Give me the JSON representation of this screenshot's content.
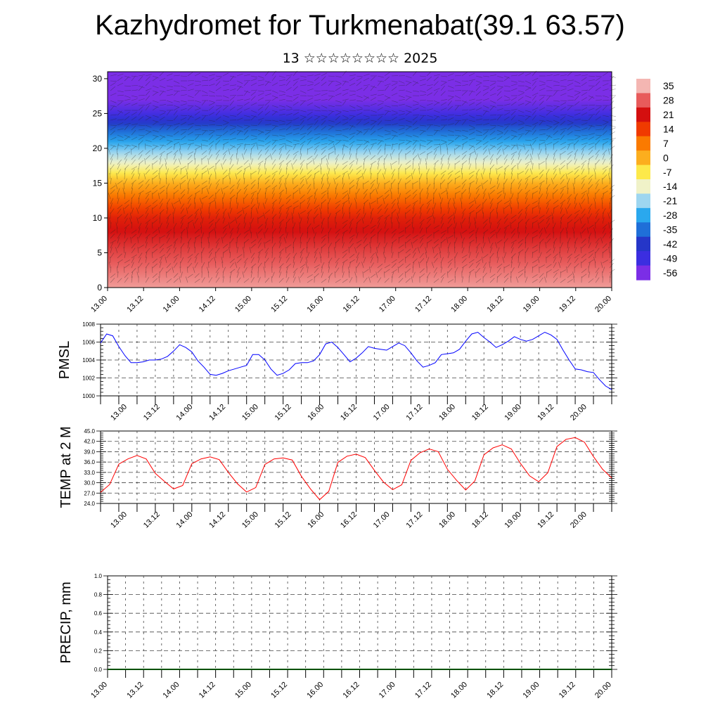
{
  "title": "Kazhydromet for Turkmenabat(39.1 63.57)",
  "subtitle": "13 ☆☆☆☆☆☆☆☆ 2025",
  "time_labels": [
    "13.00",
    "13.12",
    "14.00",
    "14.12",
    "15.00",
    "15.12",
    "16.00",
    "16.12",
    "17.00",
    "17.12",
    "18.00",
    "18.12",
    "19.00",
    "19.12",
    "20.00"
  ],
  "chart_data": [
    {
      "type": "heatmap",
      "name": "cross-section",
      "description_axes": "time vs height level",
      "y_ticks": [
        0,
        5,
        10,
        15,
        20,
        25,
        30
      ],
      "ylim": [
        0,
        31
      ],
      "colorbar_labels": [
        "35",
        "28",
        "21",
        "14",
        "7",
        "0",
        "-7",
        "-14",
        "-21",
        "-28",
        "-35",
        "-42",
        "-49",
        "-56"
      ],
      "colorbar_stops": [
        {
          "v": 35,
          "c": "#f4b6b2"
        },
        {
          "v": 28,
          "c": "#e85b5b"
        },
        {
          "v": 21,
          "c": "#d40f0f"
        },
        {
          "v": 14,
          "c": "#f03a00"
        },
        {
          "v": 7,
          "c": "#fa7a00"
        },
        {
          "v": 0,
          "c": "#fcae1e"
        },
        {
          "v": -7,
          "c": "#fde94a"
        },
        {
          "v": -14,
          "c": "#f0f2c8"
        },
        {
          "v": -21,
          "c": "#9ed6f0"
        },
        {
          "v": -28,
          "c": "#2aa8ee"
        },
        {
          "v": -35,
          "c": "#1f6fd8"
        },
        {
          "v": -42,
          "c": "#2536c8"
        },
        {
          "v": -49,
          "c": "#3b2ee0"
        },
        {
          "v": -56,
          "c": "#7b2ee6"
        }
      ],
      "level_temperature": [
        {
          "level": 0,
          "temp": 33
        },
        {
          "level": 5,
          "temp": 26
        },
        {
          "level": 10,
          "temp": 18
        },
        {
          "level": 13,
          "temp": 8
        },
        {
          "level": 15,
          "temp": 0
        },
        {
          "level": 17,
          "temp": -10
        },
        {
          "level": 20,
          "temp": -24
        },
        {
          "level": 23,
          "temp": -38
        },
        {
          "level": 25,
          "temp": -50
        },
        {
          "level": 27,
          "temp": -56
        },
        {
          "level": 31,
          "temp": -56
        }
      ]
    },
    {
      "type": "line",
      "name": "PMSL",
      "ylabel": "PMSL",
      "y_ticks": [
        "1000",
        "1002",
        "1004",
        "1006",
        "1008"
      ],
      "ylim": [
        1000,
        1008
      ],
      "color": "#0000ff",
      "x": [
        0,
        2,
        4,
        6,
        8,
        10,
        12,
        14,
        16,
        18,
        20,
        22,
        24,
        26,
        28,
        30,
        32,
        34,
        36,
        38,
        40,
        42,
        44,
        46,
        48,
        50,
        52,
        54,
        56,
        58,
        60,
        62,
        64,
        66,
        68,
        70,
        72,
        74,
        76,
        78,
        80,
        82,
        84,
        86,
        88,
        90,
        92,
        94,
        96,
        98,
        100,
        102,
        104,
        106,
        108,
        110,
        112,
        114,
        116,
        118,
        120,
        122,
        124,
        126,
        128,
        130,
        132,
        134,
        136,
        138,
        140,
        142,
        144,
        146,
        148,
        150,
        152,
        154,
        156,
        158,
        160,
        162,
        164,
        166,
        168
      ],
      "values": [
        1005.9,
        1006.9,
        1006.7,
        1005.5,
        1004.5,
        1003.7,
        1003.7,
        1003.8,
        1004.0,
        1004.0,
        1004.1,
        1004.4,
        1005.0,
        1005.7,
        1005.4,
        1004.9,
        1003.9,
        1003.2,
        1002.4,
        1002.3,
        1002.5,
        1002.8,
        1003.0,
        1003.2,
        1003.4,
        1004.6,
        1004.6,
        1004.0,
        1003.0,
        1002.3,
        1002.5,
        1002.9,
        1003.6,
        1003.7,
        1003.7,
        1003.9,
        1004.6,
        1005.8,
        1006.0,
        1005.4,
        1004.6,
        1003.8,
        1004.2,
        1004.8,
        1005.5,
        1005.3,
        1005.2,
        1005.1,
        1005.5,
        1005.9,
        1005.6,
        1004.8,
        1003.9,
        1003.2,
        1003.4,
        1003.7,
        1004.6,
        1004.7,
        1004.8,
        1005.2,
        1006.1,
        1006.9,
        1007.1,
        1006.5,
        1006.0,
        1005.4,
        1005.7,
        1006.1,
        1006.6,
        1006.3,
        1006.1,
        1006.3,
        1006.7,
        1007.1,
        1006.8,
        1006.3,
        1005.1,
        1004.0,
        1003.0,
        1002.9,
        1002.7,
        1002.6,
        1001.8,
        1001.1,
        1000.7
      ]
    },
    {
      "type": "line",
      "name": "TEMP",
      "ylabel": "TEMP at 2 M",
      "y_ticks": [
        "24.0",
        "27.0",
        "30.0",
        "33.0",
        "36.0",
        "39.0",
        "42.0",
        "45.0"
      ],
      "ylim": [
        24,
        45
      ],
      "color": "#ff0000",
      "x": [
        0,
        3,
        6,
        9,
        12,
        15,
        18,
        21,
        24,
        27,
        30,
        33,
        36,
        39,
        42,
        45,
        48,
        51,
        54,
        57,
        60,
        63,
        66,
        69,
        72,
        75,
        78,
        81,
        84,
        87,
        90,
        93,
        96,
        99,
        102,
        105,
        108,
        111,
        114,
        117,
        120,
        123,
        126,
        129,
        132,
        135,
        138,
        141,
        144,
        147,
        150,
        153,
        156,
        159,
        162,
        165,
        168
      ],
      "values": [
        27.2,
        29.5,
        35.4,
        36.9,
        37.9,
        36.9,
        32.7,
        30.4,
        28.2,
        29.2,
        35.5,
        36.9,
        37.5,
        36.7,
        33.0,
        29.7,
        27.3,
        28.6,
        35.3,
        36.9,
        37.2,
        36.6,
        31.9,
        28.2,
        25.1,
        27.5,
        35.9,
        37.7,
        38.3,
        37.3,
        33.6,
        30.2,
        28.0,
        29.4,
        36.5,
        38.7,
        39.8,
        39.0,
        33.9,
        30.7,
        27.9,
        30.5,
        38.1,
        40.1,
        41.0,
        39.8,
        35.6,
        32.0,
        30.3,
        32.9,
        40.5,
        42.6,
        43.1,
        41.8,
        37.6,
        33.9,
        31.4
      ]
    },
    {
      "type": "line",
      "name": "PRECIP",
      "ylabel": "PRECIP, mm",
      "y_ticks": [
        "0.0",
        "0.2",
        "0.4",
        "0.6",
        "0.8",
        "1.0"
      ],
      "ylim": [
        0,
        1
      ],
      "color": "#005000",
      "x": [
        0,
        168
      ],
      "values": [
        0,
        0
      ]
    }
  ]
}
